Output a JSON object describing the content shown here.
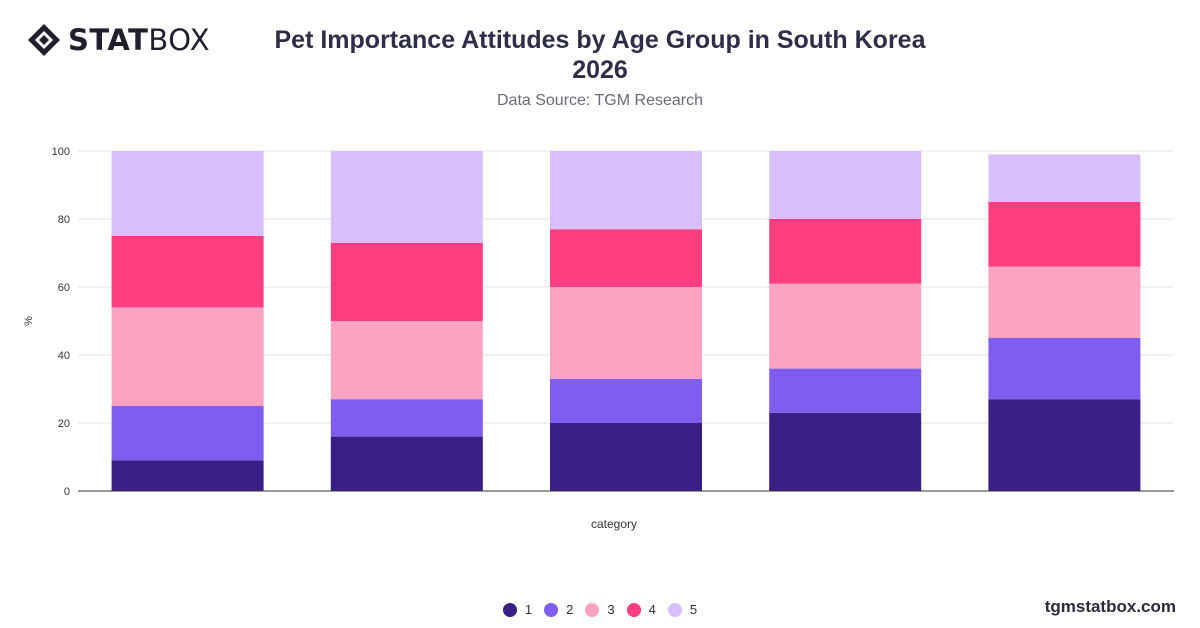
{
  "brand": {
    "logo_bold": "STAT",
    "logo_light": "BOX",
    "site": "tgmstatbox.com"
  },
  "title_line1": "Pet Importance Attitudes by Age Group in South Korea",
  "title_line2": "2026",
  "subtitle": "Data Source: TGM Research",
  "colors": {
    "s1": "#381e85",
    "s2": "#7f5df0",
    "s3": "#fca3c4",
    "s4": "#ff3d80",
    "s5": "#d6bffc"
  },
  "chart_data": {
    "type": "bar",
    "stacked": true,
    "title": "Pet Importance Attitudes by Age Group in South Korea 2026",
    "subtitle": "Data Source: TGM Research",
    "xlabel": "category",
    "ylabel": "%",
    "ylim": [
      0,
      100
    ],
    "yticks": [
      0,
      20,
      40,
      60,
      80,
      100
    ],
    "categories": [
      "",
      "",
      "",
      "",
      ""
    ],
    "series": [
      {
        "name": "1",
        "color": "#381e85",
        "values": [
          9,
          16,
          20,
          23,
          27
        ]
      },
      {
        "name": "2",
        "color": "#7f5df0",
        "values": [
          16,
          11,
          13,
          13,
          18
        ]
      },
      {
        "name": "3",
        "color": "#fca3c4",
        "values": [
          29,
          23,
          27,
          25,
          21
        ]
      },
      {
        "name": "4",
        "color": "#ff3d80",
        "values": [
          21,
          23,
          17,
          19,
          19
        ]
      },
      {
        "name": "5",
        "color": "#d6bffc",
        "values": [
          25,
          27,
          23,
          20,
          14
        ]
      }
    ],
    "grid": true,
    "legend": "bottom-center"
  }
}
